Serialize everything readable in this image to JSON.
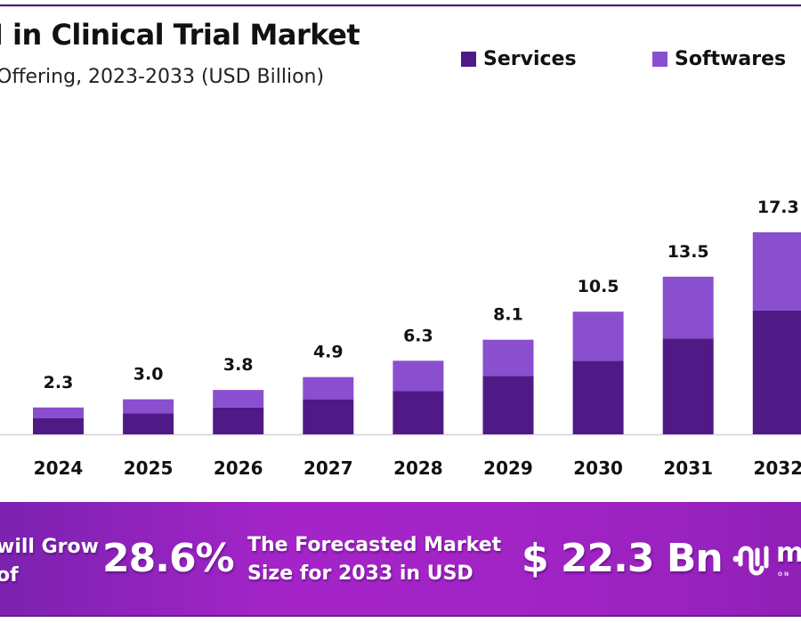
{
  "header": {
    "title": "I in Clinical Trial Market",
    "subtitle": "Offering, 2023-2033 (USD Billion)"
  },
  "legend": [
    {
      "label": "Services",
      "color": "#4f1a85"
    },
    {
      "label": "Softwares",
      "color": "#8a4fcf"
    }
  ],
  "chart_data": {
    "type": "bar",
    "stacked": true,
    "title": "I in Clinical Trial Market",
    "subtitle": "Offering, 2023-2033 (USD Billion)",
    "xlabel": "",
    "ylabel": "USD Billion",
    "ylim": [
      0,
      17.3
    ],
    "grid": false,
    "legend_position": "top-right",
    "categories": [
      "2024",
      "2025",
      "2026",
      "2027",
      "2028",
      "2029",
      "2030",
      "2031",
      "2032"
    ],
    "totals": [
      2.3,
      3.0,
      3.8,
      4.9,
      6.3,
      8.1,
      10.5,
      13.5,
      17.3
    ],
    "total_labels": [
      "2.3",
      "3.0",
      "3.8",
      "4.9",
      "6.3",
      "8.1",
      "10.5",
      "13.5",
      "17.3"
    ],
    "series": [
      {
        "name": "Services",
        "color": "#4f1a85",
        "values": [
          1.4,
          1.8,
          2.3,
          3.0,
          3.7,
          5.0,
          6.3,
          8.2,
          10.6
        ]
      },
      {
        "name": "Softwares",
        "color": "#8a4fcf",
        "values": [
          0.9,
          1.2,
          1.5,
          1.9,
          2.6,
          3.1,
          4.2,
          5.3,
          6.7
        ]
      }
    ]
  },
  "banner": {
    "grow_line1": "will Grow",
    "grow_line2": "of",
    "cagr": "28.6%",
    "forecast_line1": "The Forecasted Market",
    "forecast_line2": "Size for 2033 in USD",
    "market_size": "$ 22.3 Bn",
    "brand_letter": "m",
    "brand_sub": "ON",
    "logo_icon": "brand-wave-logo"
  }
}
